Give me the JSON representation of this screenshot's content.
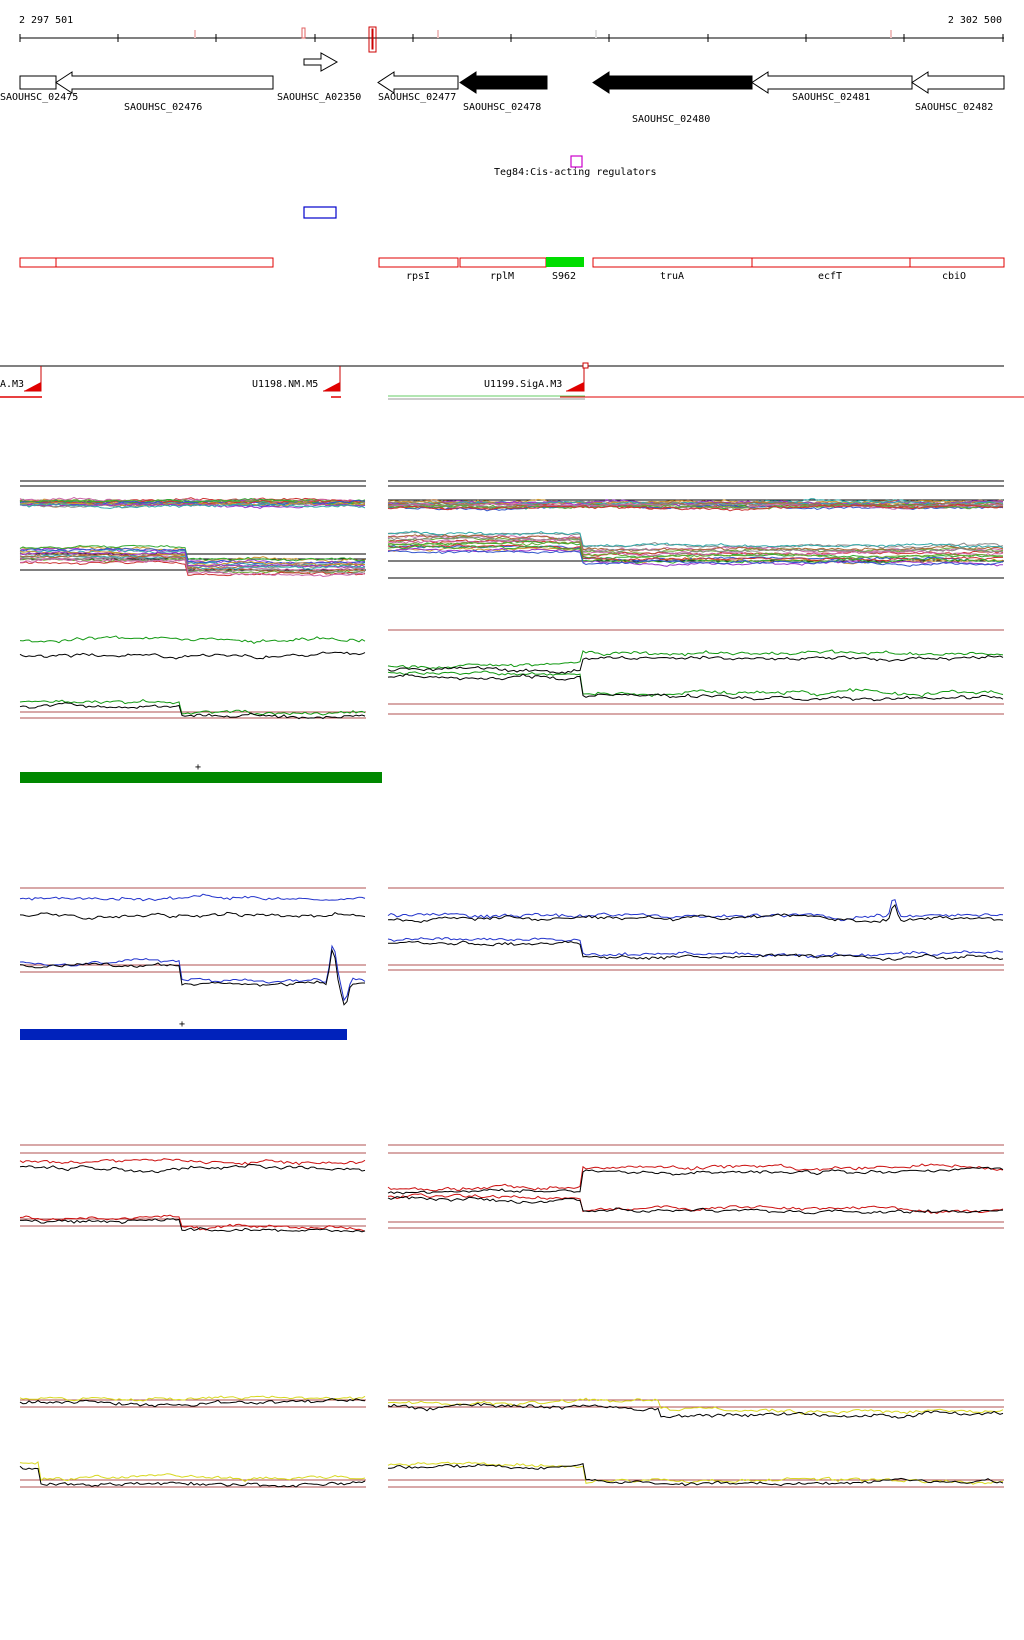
{
  "coordinates": {
    "start": "2 297 501",
    "end": "2 302 500"
  },
  "colors": {
    "gene_outline": "#000000",
    "gene_filled": "#000000",
    "operon_red": "#e00000",
    "rna_green": "#00dd00",
    "regulator_magenta": "#cc00cc",
    "feature_blue": "#0000cc",
    "bar_green": "#008800",
    "bar_blue": "#0022bb",
    "series_green": "#119911",
    "series_blue": "#2233cc",
    "series_red": "#cc1111",
    "series_yellow": "#d8d820",
    "ref_line": "#b05050"
  },
  "genes": [
    {
      "id": "SAOUHSC_02475",
      "label": "SAOUHSC_02475",
      "strand": "-",
      "filled": false
    },
    {
      "id": "SAOUHSC_02476",
      "label": "SAOUHSC_02476",
      "strand": "-",
      "filled": false
    },
    {
      "id": "SAOUHSC_A02350",
      "label": "SAOUHSC_A02350",
      "strand": "+",
      "filled": false
    },
    {
      "id": "SAOUHSC_02477",
      "label": "SAOUHSC_02477",
      "strand": "-",
      "filled": false
    },
    {
      "id": "SAOUHSC_02478",
      "label": "SAOUHSC_02478",
      "strand": "-",
      "filled": true
    },
    {
      "id": "SAOUHSC_02480",
      "label": "SAOUHSC_02480",
      "strand": "-",
      "filled": true
    },
    {
      "id": "SAOUHSC_02481",
      "label": "SAOUHSC_02481",
      "strand": "-",
      "filled": false
    },
    {
      "id": "SAOUHSC_02482",
      "label": "SAOUHSC_02482",
      "strand": "-",
      "filled": false
    }
  ],
  "regulator": {
    "label": "Teg84:Cis-acting regulators"
  },
  "operon_segments": [
    {
      "label": ""
    },
    {
      "label": ""
    },
    {
      "label": "rpsI"
    },
    {
      "label": "rplM"
    },
    {
      "label": "S962",
      "rna": true
    },
    {
      "label": "truA"
    },
    {
      "label": "ecfT"
    },
    {
      "label": "cbiO"
    }
  ],
  "transcription_units": [
    {
      "label": "A.M3"
    },
    {
      "label": "U1198.NM.M5"
    },
    {
      "label": "U1199.SigA.M3"
    }
  ],
  "plus_marks": [
    "+",
    "+"
  ]
}
